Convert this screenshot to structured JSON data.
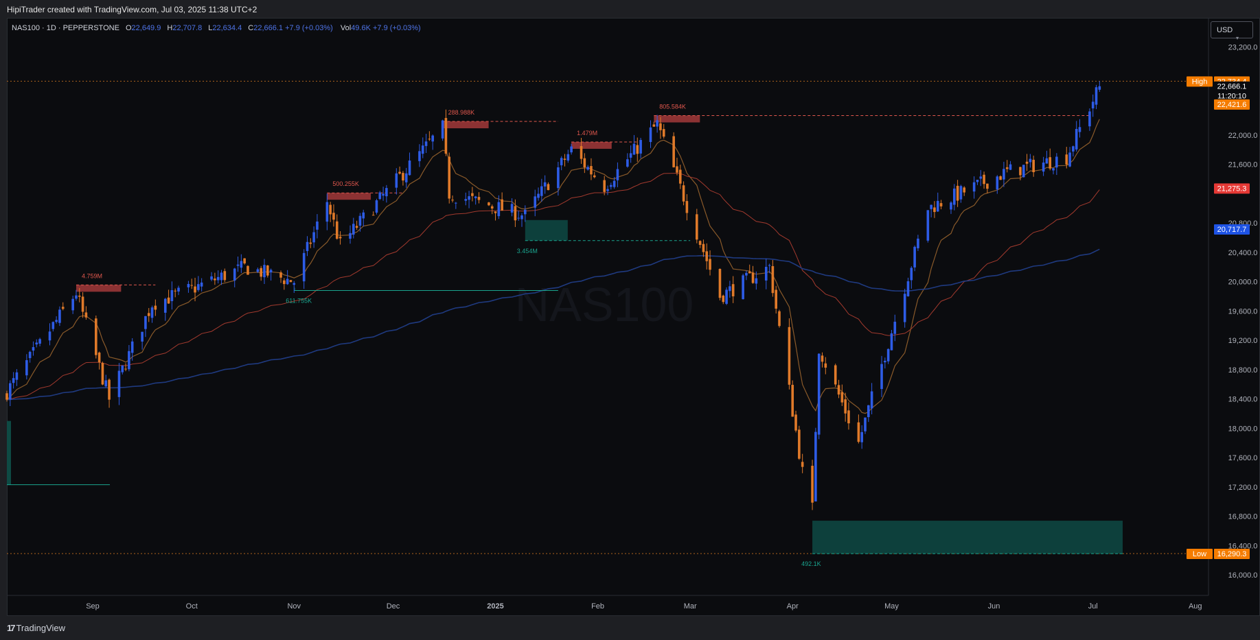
{
  "header": {
    "title": "HipiTrader created with TradingView.com, Jul 03, 2025 11:38 UTC+2"
  },
  "legend": {
    "symbol": "NAS100 · 1D · PEPPERSTONE",
    "o_label": "O",
    "o": "22,649.9",
    "h_label": "H",
    "h": "22,707.8",
    "l_label": "L",
    "l": "22,634.4",
    "c_label": "C",
    "c": "22,666.1 +7.9 (+0.03%)",
    "vol_label": "Vol",
    "vol": "49.6K +7.9 (+0.03%)"
  },
  "currency": "USD",
  "watermark": "NAS100",
  "footer": {
    "brand": "TradingView"
  },
  "price_axis": {
    "ticks": [
      "23,200.0",
      "22,000.0",
      "21,600.0",
      "20,800.0",
      "20,400.0",
      "20,000.0",
      "19,600.0",
      "19,200.0",
      "18,800.0",
      "18,400.0",
      "18,000.0",
      "17,600.0",
      "17,200.0",
      "16,800.0",
      "16,400.0",
      "16,000.0"
    ],
    "tick_values": [
      23200,
      22000,
      21600,
      20800,
      20400,
      20000,
      19600,
      19200,
      18800,
      18400,
      18000,
      17600,
      17200,
      16800,
      16400,
      16000
    ],
    "labels": [
      {
        "value": 22734.4,
        "text": "22,734.4",
        "tag": "High",
        "color": "#f57c00"
      },
      {
        "value": 22666.1,
        "text": "22,666.1",
        "sub": "11:20:10",
        "color": "#0b0c0f"
      },
      {
        "value": 22421.6,
        "text": "22,421.6",
        "color": "#f57c00"
      },
      {
        "value": 21275.3,
        "text": "21,275.3",
        "color": "#e53935"
      },
      {
        "value": 20717.7,
        "text": "20,717.7",
        "color": "#1e53e5"
      },
      {
        "value": 16290.3,
        "text": "16,290.3",
        "tag": "Low",
        "color": "#f57c00"
      }
    ]
  },
  "time_axis": {
    "labels": [
      {
        "text": "Sep",
        "date": "2024-09-01"
      },
      {
        "text": "Oct",
        "date": "2024-10-01"
      },
      {
        "text": "Nov",
        "date": "2024-11-01"
      },
      {
        "text": "Dec",
        "date": "2024-12-01"
      },
      {
        "text": "2025",
        "date": "2025-01-01",
        "bold": true
      },
      {
        "text": "Feb",
        "date": "2025-02-01"
      },
      {
        "text": "Mar",
        "date": "2025-03-01"
      },
      {
        "text": "Apr",
        "date": "2025-04-01"
      },
      {
        "text": "May",
        "date": "2025-05-01"
      },
      {
        "text": "Jun",
        "date": "2025-06-01"
      },
      {
        "text": "Jul",
        "date": "2025-07-01"
      },
      {
        "text": "Aug",
        "date": "2025-08-01"
      }
    ]
  },
  "chart_data": {
    "type": "candlestick",
    "title": "NAS100 · 1D · PEPPERSTONE",
    "x_range": [
      "2024-08-06",
      "2025-08-05"
    ],
    "ylim": [
      15720,
      23590
    ],
    "colors": {
      "up": "#2e5ce6",
      "down": "#e07a2a",
      "ema_fast": "#8a5a2a",
      "ema_mid": "#a33a2e",
      "ema_slow": "#1f3a80"
    },
    "key_points": [
      {
        "date": "2024-08-06",
        "close": 18500
      },
      {
        "date": "2024-08-27",
        "close": 19850
      },
      {
        "date": "2024-09-06",
        "close": 18400
      },
      {
        "date": "2024-09-19",
        "close": 19700
      },
      {
        "date": "2024-10-01",
        "close": 19900
      },
      {
        "date": "2024-10-17",
        "close": 20200
      },
      {
        "date": "2024-11-01",
        "close": 20000
      },
      {
        "date": "2024-11-11",
        "close": 21100
      },
      {
        "date": "2024-11-15",
        "close": 20500
      },
      {
        "date": "2024-12-16",
        "close": 22100
      },
      {
        "date": "2024-12-18",
        "close": 21200
      },
      {
        "date": "2025-01-10",
        "close": 20900
      },
      {
        "date": "2025-01-24",
        "close": 21800
      },
      {
        "date": "2025-02-03",
        "close": 21300
      },
      {
        "date": "2025-02-19",
        "close": 22150
      },
      {
        "date": "2025-03-10",
        "close": 19800
      },
      {
        "date": "2025-03-25",
        "close": 20200
      },
      {
        "date": "2025-04-04",
        "close": 17400
      },
      {
        "date": "2025-04-07",
        "close": 16900
      },
      {
        "date": "2025-04-09",
        "close": 19100
      },
      {
        "date": "2025-04-21",
        "close": 17800
      },
      {
        "date": "2025-05-12",
        "close": 21000
      },
      {
        "date": "2025-06-05",
        "close": 21500
      },
      {
        "date": "2025-06-23",
        "close": 21700
      },
      {
        "date": "2025-07-03",
        "close": 22666
      }
    ],
    "levels": [
      {
        "label": "4.759M",
        "date_from": "2024-08-27",
        "date_to": "2024-09-20",
        "price": 19900,
        "kind": "supply"
      },
      {
        "label": "500.255K",
        "date_from": "2024-11-11",
        "date_to": "2024-12-04",
        "price": 21155,
        "kind": "supply"
      },
      {
        "label": "288.988K",
        "date_from": "2024-12-16",
        "date_to": "2025-01-20",
        "price": 22130,
        "kind": "supply"
      },
      {
        "label": "1.479M",
        "date_from": "2025-01-24",
        "date_to": "2025-02-13",
        "price": 21850,
        "kind": "supply"
      },
      {
        "label": "805.584K",
        "date_from": "2025-02-18",
        "date_to": "2025-06-30",
        "price": 22210,
        "kind": "supply"
      },
      {
        "label": "611.755K",
        "date_from": "2024-11-01",
        "date_to": "2025-01-20",
        "price": 19880,
        "kind": "demand"
      },
      {
        "label": "3.454M",
        "date_from": "2025-01-10",
        "date_to": "2025-03-01",
        "price": 20560,
        "kind": "demand"
      },
      {
        "label": "492.1K",
        "date_from": "2025-04-07",
        "date_to": "2025-07-10",
        "price": 16290,
        "kind": "demand"
      }
    ]
  }
}
